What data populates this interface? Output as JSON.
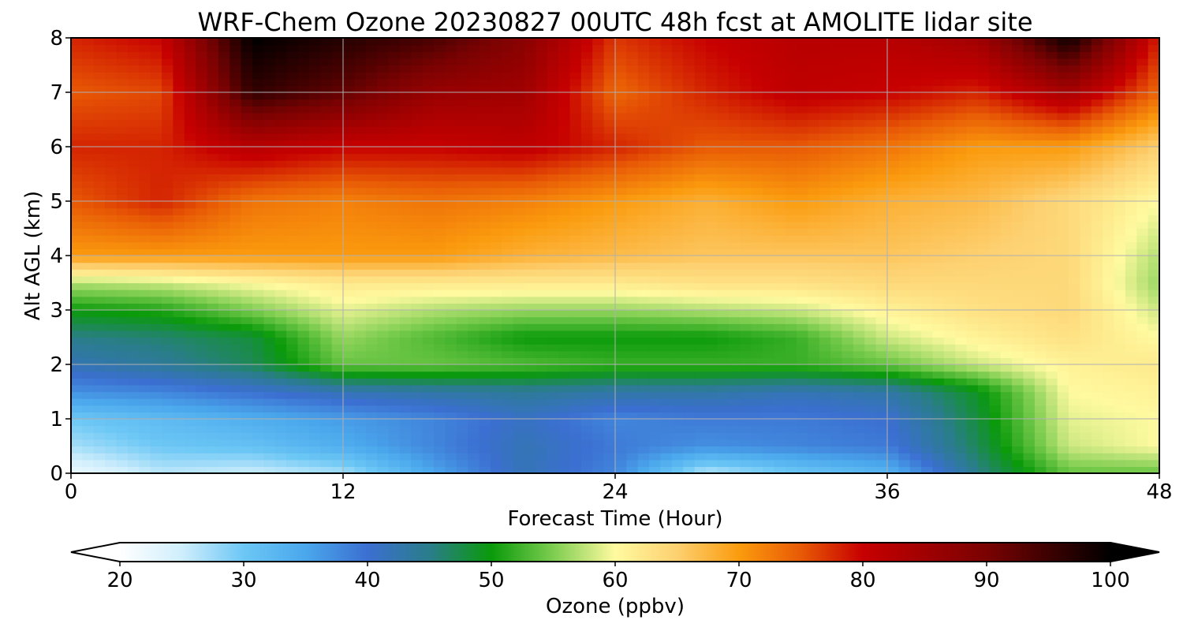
{
  "chart_data": {
    "type": "heatmap",
    "title": "WRF-Chem Ozone  20230827 00UTC 48h fcst at AMOLITE lidar site",
    "xlabel": "Forecast Time (Hour)",
    "ylabel": "Alt AGL (km)",
    "xlim": [
      0,
      48
    ],
    "ylim": [
      0,
      8
    ],
    "xticks": [
      0,
      12,
      24,
      36,
      48
    ],
    "yticks": [
      0,
      1,
      2,
      3,
      4,
      5,
      6,
      7,
      8
    ],
    "grid": true,
    "colorbar": {
      "label": "Ozone  (ppbv)",
      "vmin": 20,
      "vmax": 100,
      "ticks": [
        20,
        30,
        40,
        50,
        60,
        70,
        80,
        90,
        100
      ],
      "extend": "both",
      "colormap": [
        [
          20,
          "#ffffff"
        ],
        [
          25,
          "#cfeefc"
        ],
        [
          30,
          "#6cc7f5"
        ],
        [
          35,
          "#4aa7ec"
        ],
        [
          40,
          "#3b6fd1"
        ],
        [
          45,
          "#2a7d8a"
        ],
        [
          50,
          "#0a9a0a"
        ],
        [
          55,
          "#7dcd50"
        ],
        [
          60,
          "#fffaa0"
        ],
        [
          65,
          "#fdd070"
        ],
        [
          70,
          "#fb9b0e"
        ],
        [
          75,
          "#e85a05"
        ],
        [
          80,
          "#c70000"
        ],
        [
          90,
          "#7a0202"
        ],
        [
          100,
          "#000000"
        ]
      ]
    },
    "x": [
      0,
      4,
      8,
      12,
      16,
      20,
      24,
      28,
      32,
      36,
      40,
      44,
      48
    ],
    "y": [
      0,
      0.5,
      1,
      1.5,
      2,
      2.5,
      3,
      3.5,
      4,
      5,
      6,
      7,
      8
    ],
    "z": [
      [
        22,
        26,
        25,
        27,
        35,
        42,
        38,
        26,
        30,
        33,
        45,
        54,
        54
      ],
      [
        27,
        30,
        31,
        34,
        38,
        42,
        39,
        37,
        38,
        39,
        47,
        58,
        60
      ],
      [
        30,
        32,
        34,
        36,
        38,
        41,
        38,
        39,
        39,
        40,
        48,
        59,
        60
      ],
      [
        37,
        38,
        40,
        42,
        43,
        44,
        43,
        43,
        42,
        43,
        49,
        60,
        61
      ],
      [
        42,
        44,
        47,
        54,
        54,
        53,
        52,
        52,
        52,
        54,
        58,
        61,
        62
      ],
      [
        45,
        46,
        48,
        56,
        53,
        50,
        50,
        50,
        52,
        58,
        61,
        63,
        60
      ],
      [
        50,
        51,
        55,
        59,
        57,
        56,
        56,
        57,
        58,
        61,
        63,
        64,
        58
      ],
      [
        57,
        58,
        60,
        62,
        62,
        62,
        62,
        63,
        63,
        64,
        64,
        64,
        56
      ],
      [
        70,
        70,
        70,
        70,
        70,
        68,
        67,
        66,
        66,
        66,
        65,
        64,
        57
      ],
      [
        75,
        78,
        73,
        72,
        73,
        72,
        70,
        68,
        70,
        68,
        67,
        64,
        60
      ],
      [
        78,
        78,
        82,
        80,
        80,
        81,
        78,
        75,
        75,
        73,
        70,
        70,
        65
      ],
      [
        75,
        76,
        96,
        92,
        86,
        85,
        74,
        78,
        81,
        80,
        78,
        84,
        74
      ],
      [
        78,
        80,
        100,
        97,
        94,
        88,
        77,
        80,
        82,
        82,
        85,
        99,
        78
      ]
    ]
  }
}
